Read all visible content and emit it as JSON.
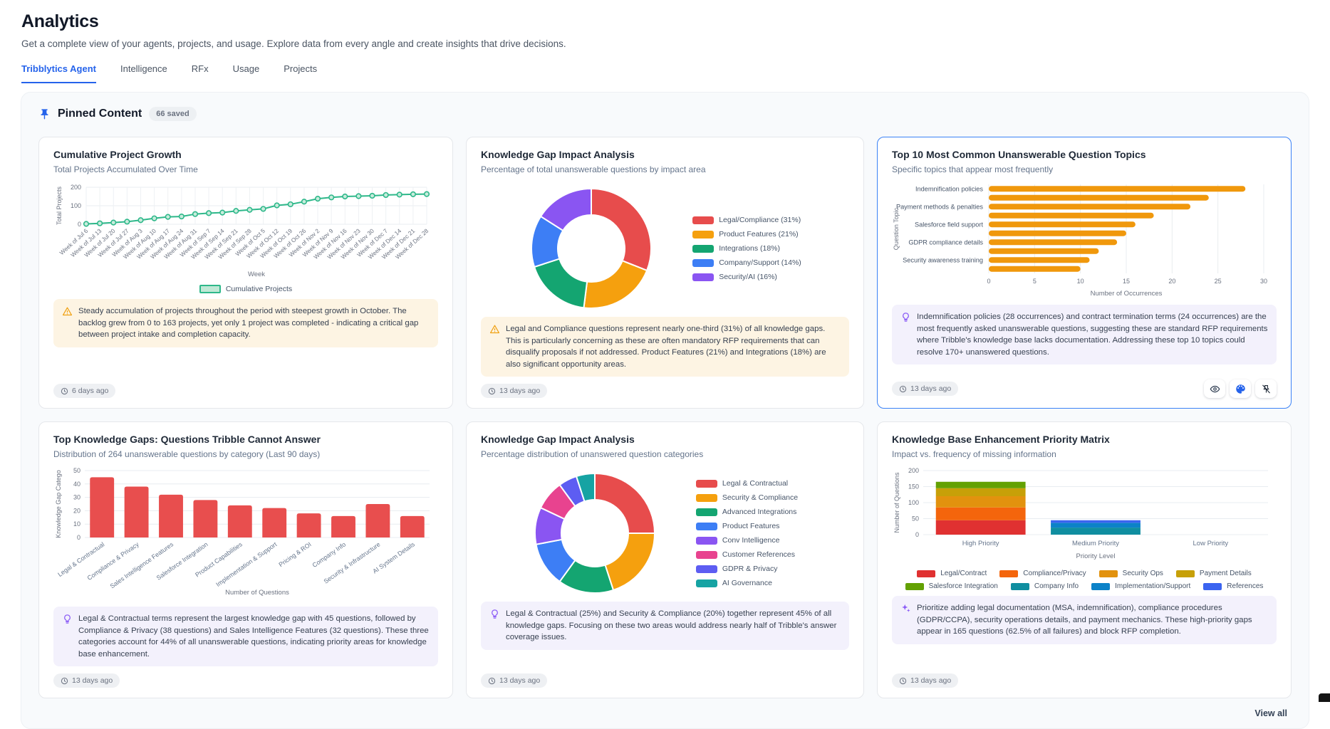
{
  "page": {
    "title": "Analytics",
    "subtitle": "Get a complete view of your agents, projects, and usage. Explore data from every angle and create insights that drive decisions."
  },
  "tabs": [
    {
      "label": "Tribblytics Agent",
      "active": true
    },
    {
      "label": "Intelligence",
      "active": false
    },
    {
      "label": "RFx",
      "active": false
    },
    {
      "label": "Usage",
      "active": false
    },
    {
      "label": "Projects",
      "active": false
    }
  ],
  "pinned": {
    "title": "Pinned Content",
    "badge": "66 saved",
    "view_all": "View all"
  },
  "cards": [
    {
      "title": "Cumulative Project Growth",
      "subtitle": "Total Projects Accumulated Over Time",
      "timestamp": "6 days ago",
      "insight": {
        "type": "warning",
        "text": "Steady accumulation of projects throughout the period with steepest growth in October. The backlog grew from 0 to 163 projects, yet only 1 project was completed - indicating a critical gap between project intake and completion capacity."
      },
      "chart_data": {
        "type": "line",
        "x": [
          "Week of Jul 6",
          "Week of Jul 13",
          "Week of Jul 20",
          "Week of Jul 27",
          "Week of Aug 3",
          "Week of Aug 10",
          "Week of Aug 17",
          "Week of Aug 24",
          "Week of Aug 31",
          "Week of Sep 7",
          "Week of Sep 14",
          "Week of Sep 21",
          "Week of Sep 28",
          "Week of Oct 5",
          "Week of Oct 12",
          "Week of Oct 19",
          "Week of Oct 26",
          "Week of Nov 2",
          "Week of Nov 9",
          "Week of Nov 16",
          "Week of Nov 23",
          "Week of Nov 30",
          "Week of Dec 7",
          "Week of Dec 14",
          "Week of Dec 21",
          "Week of Dec 28"
        ],
        "series": [
          {
            "name": "Cumulative Projects",
            "values": [
              2,
              5,
              9,
              14,
              22,
              32,
              40,
              42,
              55,
              60,
              63,
              72,
              78,
              83,
              102,
              108,
              122,
              138,
              145,
              150,
              152,
              154,
              158,
              160,
              162,
              163
            ]
          }
        ],
        "xlabel": "Week",
        "ylabel": "Total Projects",
        "ylim": [
          0,
          200
        ],
        "yticks": [
          0,
          100,
          200
        ],
        "color": "#2eb88a",
        "grid": true,
        "legend_position": "bottom"
      }
    },
    {
      "title": "Knowledge Gap Impact Analysis",
      "subtitle": "Percentage of total unanswerable questions by impact area",
      "timestamp": "13 days ago",
      "insight": {
        "type": "warning",
        "text": "Legal and Compliance questions represent nearly one-third (31%) of all knowledge gaps. This is particularly concerning as these are often mandatory RFP requirements that can disqualify proposals if not addressed. Product Features (21%) and Integrations (18%) are also significant opportunity areas."
      },
      "chart_data": {
        "type": "pie",
        "donut": true,
        "legend_position": "right",
        "segments": [
          {
            "label": "Legal/Compliance (31%)",
            "value": 31,
            "color": "#e74c4c"
          },
          {
            "label": "Product Features (21%)",
            "value": 21,
            "color": "#f5a00e"
          },
          {
            "label": "Integrations (18%)",
            "value": 18,
            "color": "#14a571"
          },
          {
            "label": "Company/Support (14%)",
            "value": 14,
            "color": "#3d7ef5"
          },
          {
            "label": "Security/AI (16%)",
            "value": 16,
            "color": "#8a55f2"
          }
        ]
      }
    },
    {
      "title": "Top 10 Most Common Unanswerable Question Topics",
      "subtitle": "Specific topics that appear most frequently",
      "timestamp": "13 days ago",
      "insight": {
        "type": "idea",
        "text": "Indemnification policies (28 occurrences) and contract termination terms (24 occurrences) are the most frequently asked unanswerable questions, suggesting these are standard RFP requirements where Tribble's knowledge base lacks documentation. Addressing these top 10 topics could resolve 170+ unanswered questions."
      },
      "chart_data": {
        "type": "bar",
        "orientation": "horizontal",
        "categories": [
          "Indemnification policies",
          "",
          "Payment methods & penalties",
          "",
          "Salesforce field support",
          "",
          "GDPR compliance details",
          "",
          "Security awareness training",
          ""
        ],
        "values": [
          28,
          24,
          22,
          18,
          16,
          15,
          14,
          12,
          11,
          10
        ],
        "xlabel": "Number of Occurrences",
        "ylabel": "Question Topic",
        "xlim": [
          0,
          30
        ],
        "xticks": [
          0,
          5,
          10,
          15,
          20,
          25,
          30
        ],
        "color": "#f0980c",
        "grid": true
      }
    },
    {
      "title": "Top Knowledge Gaps: Questions Tribble Cannot Answer",
      "subtitle": "Distribution of 264 unanswerable questions by category (Last 90 days)",
      "timestamp": "13 days ago",
      "insight": {
        "type": "idea",
        "text": "Legal & Contractual terms represent the largest knowledge gap with 45 questions, followed by Compliance & Privacy (38 questions) and Sales Intelligence Features (32 questions). These three categories account for 44% of all unanswerable questions, indicating priority areas for knowledge base enhancement."
      },
      "chart_data": {
        "type": "bar",
        "orientation": "vertical",
        "categories": [
          "Legal & Contractual",
          "Compliance & Privacy",
          "Sales Intelligence Features",
          "Salesforce Integration",
          "Product Capabilities",
          "Implementation & Support",
          "Pricing & ROI",
          "Company Info",
          "Security & Infrastructure",
          "AI System Details"
        ],
        "values": [
          45,
          38,
          32,
          28,
          24,
          22,
          18,
          16,
          25,
          16
        ],
        "xlabel": "Number of Questions",
        "ylabel": "Knowledge Gap Catego",
        "ylim": [
          0,
          50
        ],
        "yticks": [
          0,
          10,
          20,
          30,
          40,
          50
        ],
        "color": "#e84e4e",
        "grid": true
      }
    },
    {
      "title": "Knowledge Gap Impact Analysis",
      "subtitle": "Percentage distribution of unanswered question categories",
      "timestamp": "13 days ago",
      "insight": {
        "type": "idea",
        "text": "Legal & Contractual (25%) and Security & Compliance (20%) together represent 45% of all knowledge gaps. Focusing on these two areas would address nearly half of Tribble's answer coverage issues."
      },
      "chart_data": {
        "type": "pie",
        "donut": true,
        "legend_position": "right",
        "segments": [
          {
            "label": "Legal & Contractual",
            "value": 25,
            "color": "#e74c4c"
          },
          {
            "label": "Security & Compliance",
            "value": 20,
            "color": "#f5a00e"
          },
          {
            "label": "Advanced Integrations",
            "value": 15,
            "color": "#14a571"
          },
          {
            "label": "Product Features",
            "value": 12,
            "color": "#3d7ef5"
          },
          {
            "label": "Conv Intelligence",
            "value": 10,
            "color": "#8a55f2"
          },
          {
            "label": "Customer References",
            "value": 8,
            "color": "#e8438f"
          },
          {
            "label": "GDPR & Privacy",
            "value": 5,
            "color": "#5d5df2"
          },
          {
            "label": "AI Governance",
            "value": 5,
            "color": "#16a3a3"
          }
        ]
      }
    },
    {
      "title": "Knowledge Base Enhancement Priority Matrix",
      "subtitle": "Impact vs. frequency of missing information",
      "timestamp": "13 days ago",
      "insight": {
        "type": "sparkle",
        "text": "Prioritize adding legal documentation (MSA, indemnification), compliance procedures (GDPR/CCPA), security operations details, and payment mechanics. These high-priority gaps appear in 165 questions (62.5% of all failures) and block RFP completion."
      },
      "chart_data": {
        "type": "bar",
        "stacked": true,
        "categories": [
          "High Priority",
          "Medium Priority",
          "Low Priority"
        ],
        "series": [
          {
            "name": "Legal/Contract",
            "color": "#e03131",
            "values": [
              45,
              0,
              0
            ]
          },
          {
            "name": "Compliance/Privacy",
            "color": "#f4650c",
            "values": [
              40,
              0,
              0
            ]
          },
          {
            "name": "Security Ops",
            "color": "#e2920e",
            "values": [
              35,
              0,
              0
            ]
          },
          {
            "name": "Payment Details",
            "color": "#c7a008",
            "values": [
              25,
              0,
              0
            ]
          },
          {
            "name": "Salesforce Integration",
            "color": "#63a103",
            "values": [
              20,
              0,
              0
            ]
          },
          {
            "name": "Company Info",
            "color": "#108ea0",
            "values": [
              0,
              22,
              0
            ]
          },
          {
            "name": "Implementation/Support",
            "color": "#0c82c8",
            "values": [
              0,
              15,
              0
            ]
          },
          {
            "name": "References",
            "color": "#3b64f0",
            "values": [
              0,
              8,
              0
            ]
          }
        ],
        "xlabel": "Priority Level",
        "ylabel": "Number of Questions",
        "ylim": [
          0,
          200
        ],
        "yticks": [
          0,
          50,
          100,
          150,
          200
        ],
        "grid": true,
        "legend_position": "bottom"
      }
    }
  ]
}
